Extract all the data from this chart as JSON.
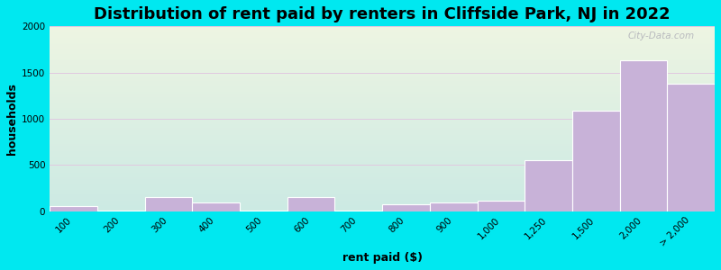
{
  "title": "Distribution of rent paid by renters in Cliffside Park, NJ in 2022",
  "xlabel": "rent paid ($)",
  "ylabel": "households",
  "categories": [
    "100",
    "200",
    "300",
    "400",
    "500",
    "600",
    "700",
    "800",
    "900",
    "1,000",
    "1,250",
    "1,500",
    "2,000",
    "> 2,000"
  ],
  "values": [
    50,
    10,
    150,
    90,
    10,
    150,
    10,
    70,
    90,
    110,
    550,
    1090,
    1630,
    1380
  ],
  "bar_color": "#c8b2d8",
  "bar_edge_color": "#ffffff",
  "ylim": [
    0,
    2000
  ],
  "yticks": [
    0,
    500,
    1000,
    1500,
    2000
  ],
  "background_outer": "#00e8f0",
  "background_inner_grad_top": "#eef5e2",
  "background_inner_grad_bottom": "#cceae4",
  "grid_color": "#e0c8e0",
  "title_fontsize": 13,
  "axis_label_fontsize": 9,
  "tick_fontsize": 7.5,
  "watermark_text": "City-Data.com"
}
